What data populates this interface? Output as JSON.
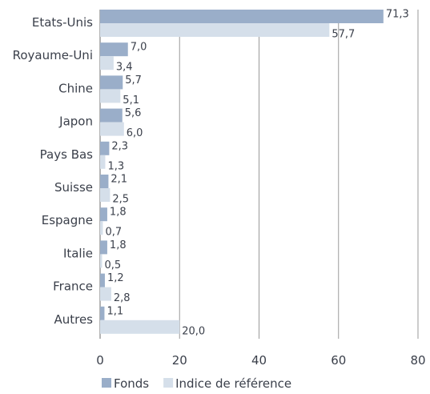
{
  "chart_data": {
    "type": "bar",
    "orientation": "horizontal",
    "categories": [
      "Etats-Unis",
      "Royaume-Uni",
      "Chine",
      "Japon",
      "Pays Bas",
      "Suisse",
      "Espagne",
      "Italie",
      "France",
      "Autres"
    ],
    "series": [
      {
        "name": "Fonds",
        "color": "#9aaec9",
        "values": [
          71.3,
          7.0,
          5.7,
          5.6,
          2.3,
          2.1,
          1.8,
          1.8,
          1.2,
          1.1
        ],
        "labels": [
          "71,3",
          "7,0",
          "5,7",
          "5,6",
          "2,3",
          "2,1",
          "1,8",
          "1,8",
          "1,2",
          "1,1"
        ]
      },
      {
        "name": "Indice de référence",
        "color": "#d5dfea",
        "values": [
          57.7,
          3.4,
          5.1,
          6.0,
          1.3,
          2.5,
          0.7,
          0.5,
          2.8,
          20.0
        ],
        "labels": [
          "57,7",
          "3,4",
          "5,1",
          "6,0",
          "1,3",
          "2,5",
          "0,7",
          "0,5",
          "2,8",
          "20,0"
        ]
      }
    ],
    "xlim": [
      0,
      80
    ],
    "xticks": [
      0,
      20,
      40,
      60,
      80
    ],
    "xtick_labels": [
      "0",
      "20",
      "40",
      "60",
      "80"
    ],
    "grid": "vertical",
    "legend_position": "bottom-left",
    "gridline_color": "#9a9a9a",
    "axis_color": "#6a6a6a"
  }
}
